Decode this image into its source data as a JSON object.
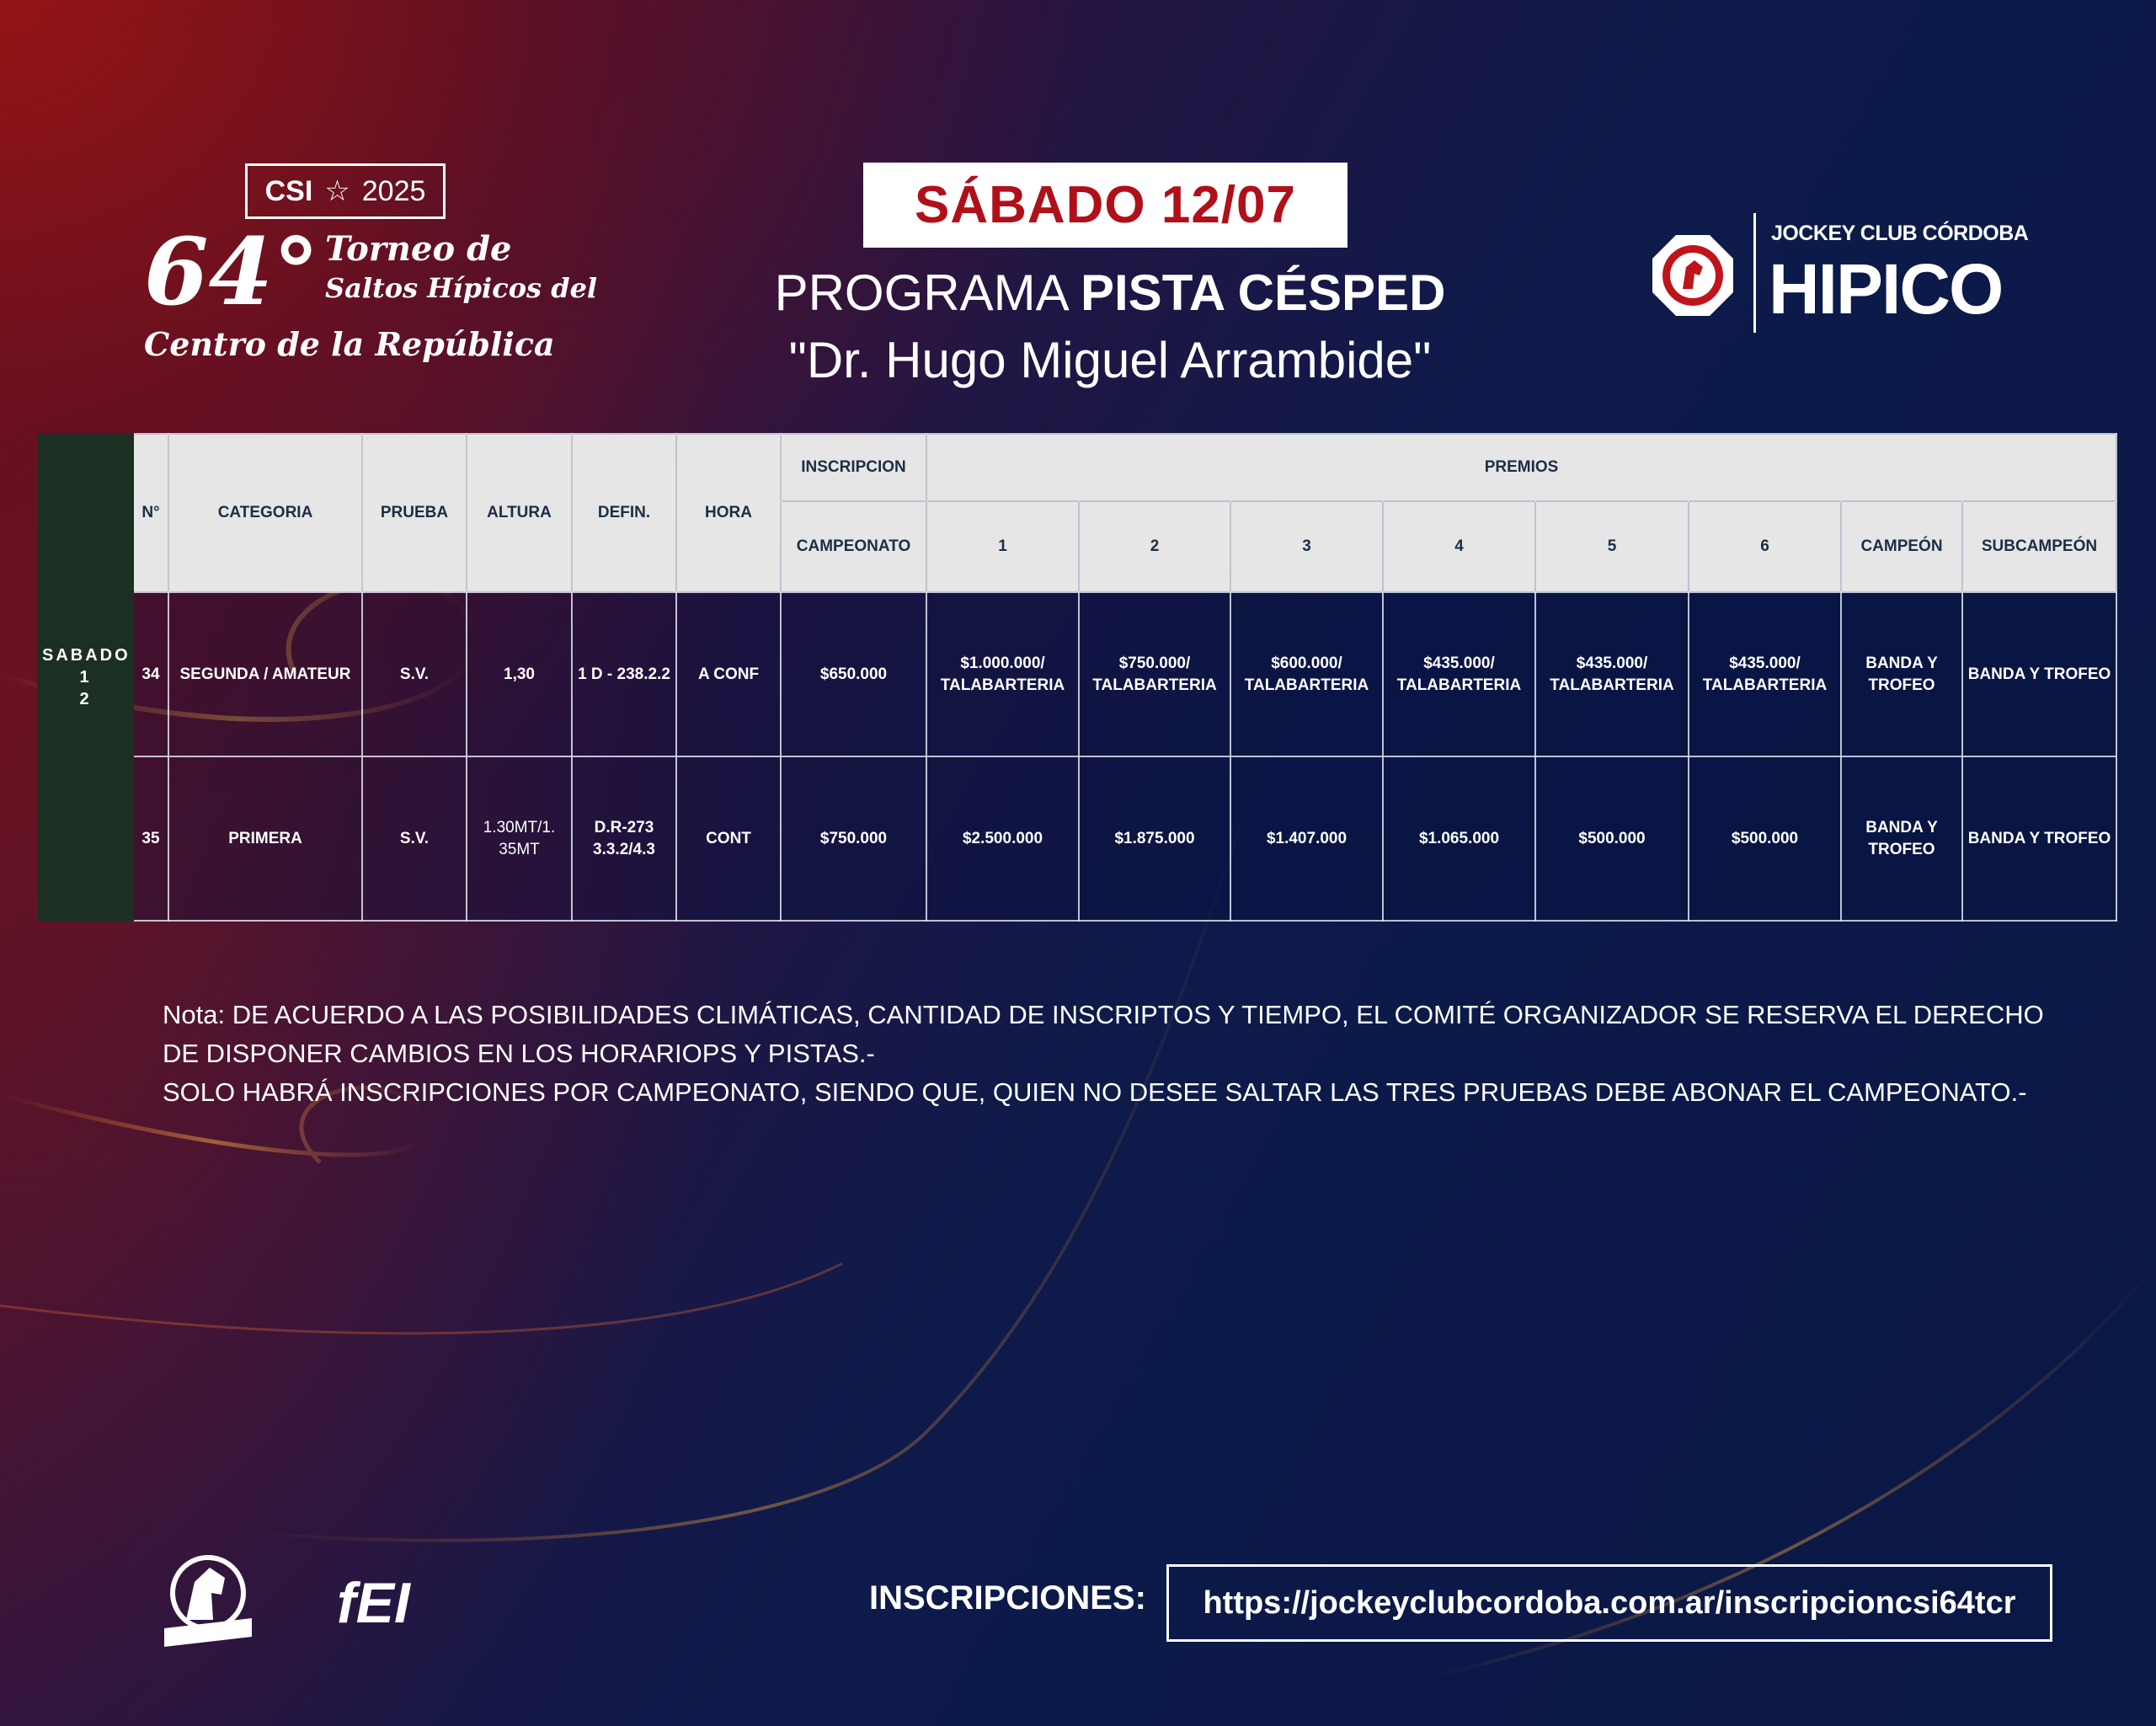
{
  "colors": {
    "date_red": "#b0101a",
    "day_column_green": "#1b3022",
    "header_gray": "#e6e6e6",
    "background_navy": "#0a1845",
    "background_red": "#8a1420"
  },
  "event_logo": {
    "csi": "CSI",
    "year": "2025",
    "number": "64°",
    "line1": "Torneo de",
    "line2": "Saltos Hípicos del",
    "line3": "Centro de la República"
  },
  "date_banner": "SÁBADO 12/07",
  "program": {
    "prefix": "PROGRAMA",
    "venue_bold": "PISTA CÉSPED",
    "venue_name": "\"Dr. Hugo Miguel Arrambide\""
  },
  "club_logo": {
    "line1": "JOCKEY CLUB CÓRDOBA",
    "line2": "HIPICO"
  },
  "table": {
    "headers": {
      "num": "N°",
      "categoria": "CATEGORIA",
      "prueba": "PRUEBA",
      "altura": "ALTURA",
      "defin": "DEFIN.",
      "hora": "HORA",
      "inscripcion": "INSCRIPCION",
      "campeonato": "CAMPEONATO",
      "premios": "PREMIOS",
      "p1": "1",
      "p2": "2",
      "p3": "3",
      "p4": "4",
      "p5": "5",
      "p6": "6",
      "campeon": "CAMPEÓN",
      "subcampeon": "SUBCAMPEÓN"
    },
    "day_label": {
      "line1": "SABADO",
      "line2": "1",
      "line3": "2"
    },
    "rows": [
      {
        "num": "34",
        "categoria": "SEGUNDA / AMATEUR",
        "prueba": "S.V.",
        "altura": "1,30",
        "defin": "1 D - 238.2.2",
        "hora": "A CONF",
        "campeonato": "$650.000",
        "p1": "$1.000.000/ TALABARTERIA",
        "p2": "$750.000/ TALABARTERIA",
        "p3": "$600.000/ TALABARTERIA",
        "p4": "$435.000/ TALABARTERIA",
        "p5": "$435.000/ TALABARTERIA",
        "p6": "$435.000/ TALABARTERIA",
        "campeon": "BANDA Y TROFEO",
        "subcampeon": "BANDA Y TROFEO"
      },
      {
        "num": "35",
        "categoria": "PRIMERA",
        "prueba": "S.V.",
        "altura": "1.30MT/1. 35MT",
        "defin": "D.R-273 3.3.2/4.3",
        "hora": "CONT",
        "campeonato": "$750.000",
        "p1": "$2.500.000",
        "p2": "$1.875.000",
        "p3": "$1.407.000",
        "p4": "$1.065.000",
        "p5": "$500.000",
        "p6": "$500.000",
        "campeon": "BANDA Y TROFEO",
        "subcampeon": "BANDA Y TROFEO"
      }
    ]
  },
  "notes": [
    "Nota: DE ACUERDO A LAS POSIBILIDADES CLIMÁTICAS, CANTIDAD DE INSCRIPTOS Y TIEMPO, EL COMITÉ ORGANIZADOR SE RESERVA EL DERECHO",
    "DE DISPONER CAMBIOS EN LOS HORARIOPS Y PISTAS.-",
    "SOLO HABRÁ INSCRIPCIONES POR CAMPEONATO, SIENDO QUE,  QUIEN NO DESEE SALTAR LAS TRES PRUEBAS DEBE ABONAR EL CAMPEONATO.-"
  ],
  "footer": {
    "fea_logo": "FEDERACIÓN ECUESTRE ARGENTINA",
    "fei_logo": "FEI",
    "inscripciones_label": "INSCRIPCIONES:",
    "url": "https://jockeyclubcordoba.com.ar/inscripcioncsi64tcr"
  }
}
